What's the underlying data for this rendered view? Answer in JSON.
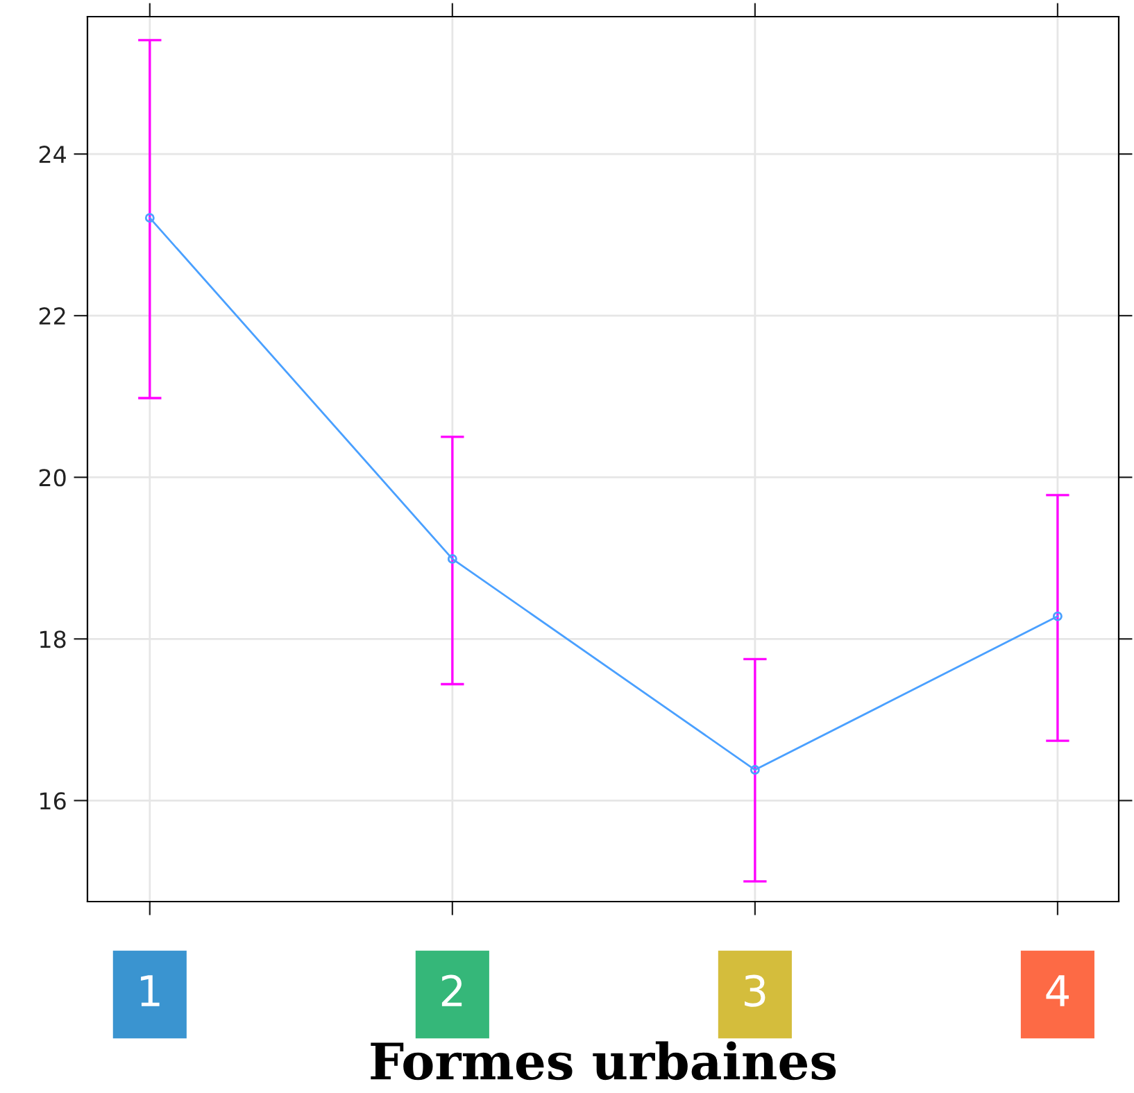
{
  "chart_data": {
    "type": "line",
    "xlabel": "Formes urbaines",
    "categories": [
      "1",
      "2",
      "3",
      "4"
    ],
    "series": [
      {
        "color": "#4aa0ff",
        "values": [
          23.21,
          18.99,
          16.38,
          18.28
        ],
        "errors": [
          [
            20.98,
            25.41
          ],
          [
            17.44,
            20.5
          ],
          [
            15.0,
            17.75
          ],
          [
            16.74,
            19.78
          ]
        ]
      }
    ],
    "ylim": [
      14.75,
      25.7
    ],
    "yticks": [
      16,
      18,
      20,
      22,
      24
    ],
    "grid": true,
    "marker": "circle",
    "line_style": "solid"
  }
}
